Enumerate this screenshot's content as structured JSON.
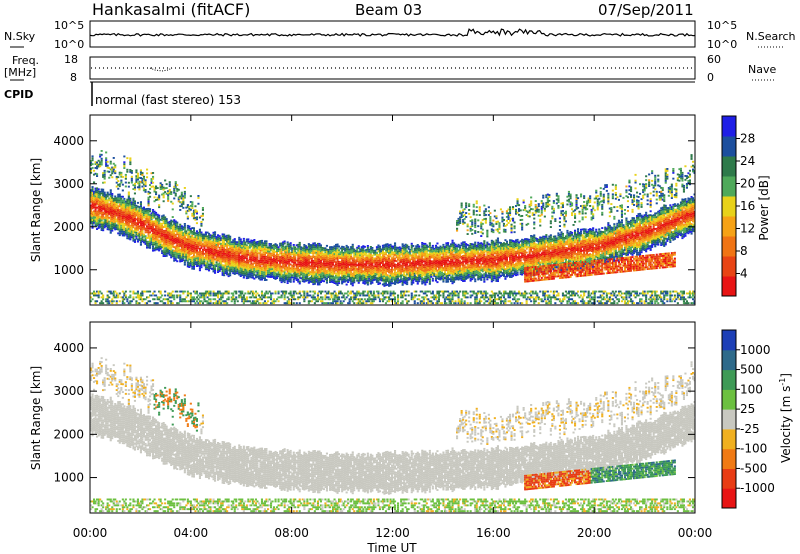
{
  "header": {
    "station": "Hankasalmi (fitACF)",
    "beam": "Beam 03",
    "date": "07/Sep/2011"
  },
  "noise_panel": {
    "left_label": "N.Sky",
    "right_label": "N.Search",
    "left_ticks": [
      "10^5",
      "10^0"
    ],
    "right_ticks": [
      "10^5",
      "10^0"
    ]
  },
  "freq_panel": {
    "left_label_1": "Freq.",
    "left_label_2": "[MHz]",
    "right_label": "Nave",
    "left_ticks": [
      "18",
      "8"
    ],
    "right_ticks": [
      "60",
      "0"
    ]
  },
  "cpid": {
    "label": "CPID",
    "value": "normal (fast stereo) 153"
  },
  "x_ticks": [
    "00:00",
    "04:00",
    "08:00",
    "12:00",
    "16:00",
    "20:00",
    "00:00"
  ],
  "x_label": "Time UT",
  "y_ticks": [
    "1000",
    "2000",
    "3000",
    "4000"
  ],
  "y_label": "Slant Range [km]",
  "power_colorbar": {
    "label": "Power [dB]",
    "ticks": [
      "4",
      "8",
      "12",
      "16",
      "20",
      "24",
      "28"
    ],
    "colors": [
      "#1f1fe6",
      "#1c4f9e",
      "#2e7a4a",
      "#4fa95a",
      "#e8d21a",
      "#f6a216",
      "#f07414",
      "#e84414",
      "#e81414"
    ]
  },
  "velocity_colorbar": {
    "label": "Velocity [m s^-1]",
    "ticks": [
      "1000",
      "500",
      "100",
      "25",
      "-25",
      "-100",
      "-500",
      "-1000"
    ],
    "colors": [
      "#1d3fb6",
      "#2e6a8a",
      "#3e9a56",
      "#6cc040",
      "#c8c8c0",
      "#f0b020",
      "#f07a14",
      "#e83c14",
      "#e81414"
    ]
  },
  "chart_data": {
    "type": "heatmap",
    "title": "Hankasalmi (fitACF) Beam 03 07/Sep/2011",
    "xlabel": "Time UT",
    "ylabel": "Slant Range [km]",
    "xlim": [
      "00:00",
      "24:00"
    ],
    "ylim": [
      180,
      4600
    ],
    "panels": [
      {
        "name": "Power [dB]",
        "range": [
          0,
          30
        ],
        "main_band_km": [
          {
            "t": 0,
            "r": 2450
          },
          {
            "t": 1,
            "r": 2300
          },
          {
            "t": 2,
            "r": 2050
          },
          {
            "t": 3,
            "r": 1750
          },
          {
            "t": 4,
            "r": 1500
          },
          {
            "t": 6,
            "r": 1250
          },
          {
            "t": 8,
            "r": 1150
          },
          {
            "t": 10,
            "r": 1100
          },
          {
            "t": 12,
            "r": 1100
          },
          {
            "t": 14,
            "r": 1150
          },
          {
            "t": 16,
            "r": 1200
          },
          {
            "t": 18,
            "r": 1350
          },
          {
            "t": 20,
            "r": 1500
          },
          {
            "t": 22,
            "r": 1850
          },
          {
            "t": 24,
            "r": 2300
          }
        ]
      },
      {
        "name": "Velocity [m s^-1]",
        "range": [
          -1000,
          1000
        ]
      }
    ]
  }
}
